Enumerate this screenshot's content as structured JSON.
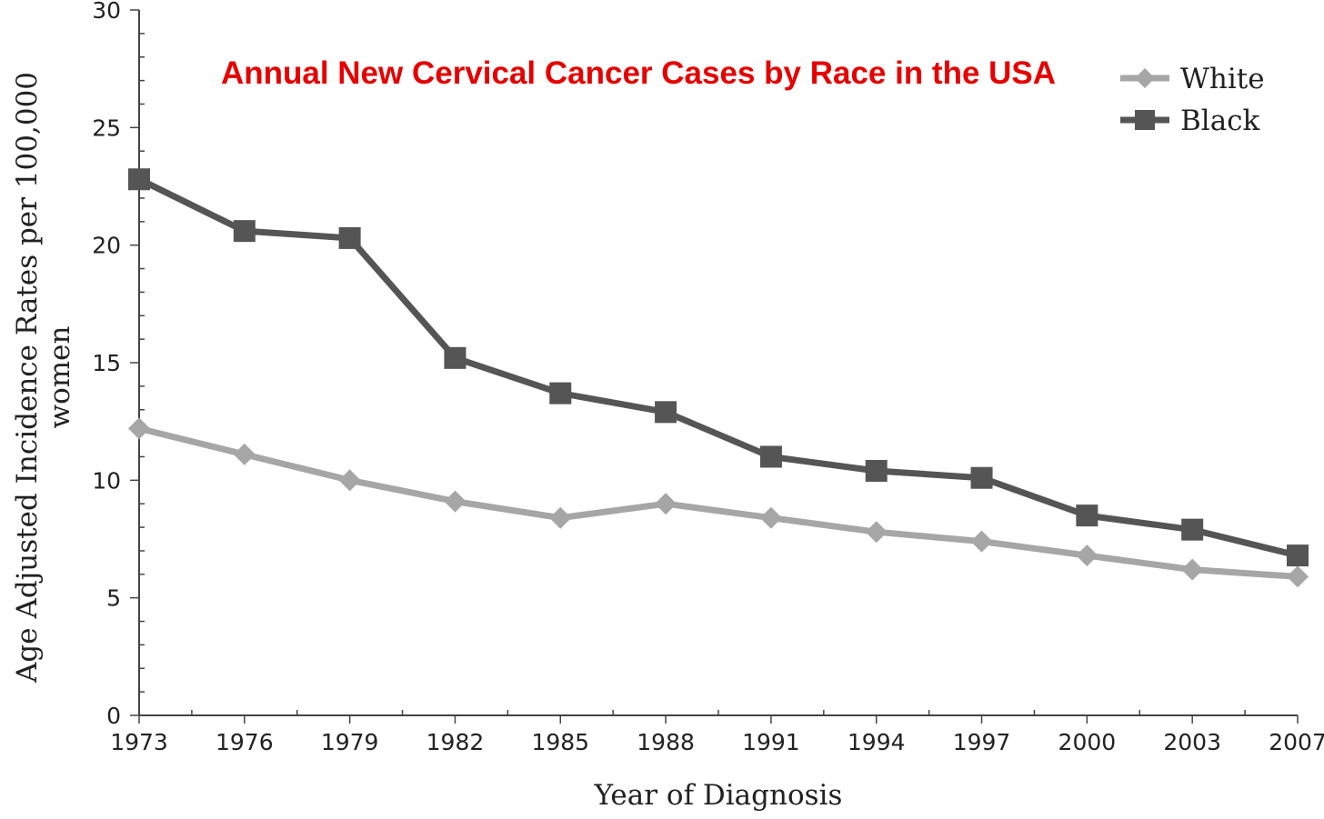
{
  "chart_data": {
    "type": "line",
    "title": "Annual New Cervical Cancer Cases by Race in the USA",
    "xlabel": "Year of Diagnosis",
    "ylabel_line1": "Age Adjusted Incidence Rates per 100,000",
    "ylabel_line2": "women",
    "categories": [
      "1973",
      "1976",
      "1979",
      "1982",
      "1985",
      "1988",
      "1991",
      "1994",
      "1997",
      "2000",
      "2003",
      "2007"
    ],
    "ylim": [
      0,
      30
    ],
    "yticks": [
      0,
      5,
      10,
      15,
      20,
      25,
      30
    ],
    "grid": false,
    "legend_position": "top-right",
    "series": [
      {
        "name": "White",
        "marker": "diamond",
        "color": "#a6a6a6",
        "values": [
          12.2,
          11.1,
          10.0,
          9.1,
          8.4,
          9.0,
          8.4,
          7.8,
          7.4,
          6.8,
          6.2,
          5.9
        ]
      },
      {
        "name": "Black",
        "marker": "square",
        "color": "#555555",
        "values": [
          22.8,
          20.6,
          20.3,
          15.2,
          13.7,
          12.9,
          11.0,
          10.4,
          10.1,
          8.5,
          7.9,
          6.8
        ]
      }
    ]
  }
}
